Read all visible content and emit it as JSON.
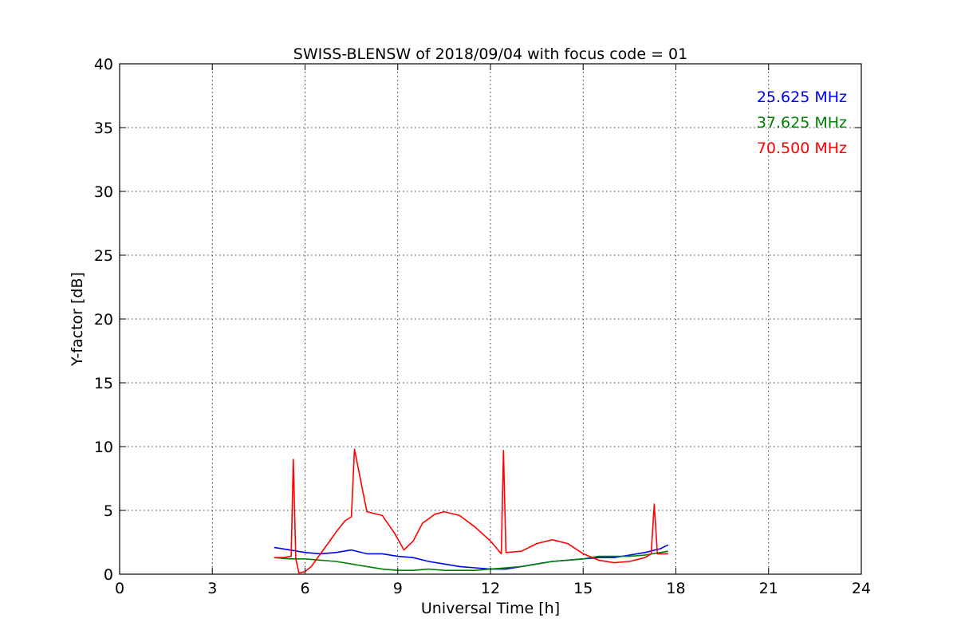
{
  "chart_data": {
    "type": "line",
    "title": "SWISS-BLENSW of 2018/09/04 with focus code = 01",
    "xlabel": "Universal Time [h]",
    "ylabel": "Y-factor [dB]",
    "xlim": [
      0,
      24
    ],
    "ylim": [
      0,
      40
    ],
    "xticks": [
      "0",
      "3",
      "6",
      "9",
      "12",
      "15",
      "18",
      "21",
      "24"
    ],
    "yticks": [
      "0",
      "5",
      "10",
      "15",
      "20",
      "25",
      "30",
      "35",
      "40"
    ],
    "grid": true,
    "legend_position": "top-right",
    "series": [
      {
        "name": "25.625 MHz",
        "color": "#0000ff",
        "x": [
          5.0,
          5.5,
          6.0,
          6.5,
          7.0,
          7.5,
          8.0,
          8.5,
          9.0,
          9.5,
          10.0,
          10.5,
          11.0,
          11.5,
          12.0,
          12.5,
          13.0,
          13.5,
          14.0,
          14.5,
          15.0,
          15.5,
          16.0,
          16.5,
          17.0,
          17.5,
          17.75
        ],
        "y": [
          2.1,
          1.9,
          1.7,
          1.6,
          1.7,
          1.9,
          1.6,
          1.6,
          1.4,
          1.3,
          1.0,
          0.8,
          0.6,
          0.5,
          0.4,
          0.4,
          0.6,
          0.8,
          1.0,
          1.1,
          1.2,
          1.3,
          1.3,
          1.5,
          1.7,
          2.0,
          2.3
        ]
      },
      {
        "name": "37.625 MHz",
        "color": "#008000",
        "x": [
          5.0,
          5.5,
          6.0,
          6.5,
          7.0,
          7.5,
          8.0,
          8.5,
          9.0,
          9.5,
          10.0,
          10.5,
          11.0,
          11.5,
          12.0,
          12.5,
          13.0,
          13.5,
          14.0,
          14.5,
          15.0,
          15.5,
          16.0,
          16.5,
          17.0,
          17.5,
          17.75
        ],
        "y": [
          1.3,
          1.2,
          1.2,
          1.1,
          1.0,
          0.8,
          0.6,
          0.4,
          0.3,
          0.3,
          0.4,
          0.3,
          0.3,
          0.3,
          0.4,
          0.5,
          0.6,
          0.8,
          1.0,
          1.1,
          1.2,
          1.4,
          1.4,
          1.4,
          1.5,
          1.7,
          1.8
        ]
      },
      {
        "name": "70.500 MHz",
        "color": "#ff0000",
        "x": [
          5.0,
          5.3,
          5.55,
          5.62,
          5.7,
          5.8,
          6.0,
          6.2,
          6.5,
          6.8,
          7.0,
          7.3,
          7.5,
          7.6,
          8.0,
          8.5,
          8.9,
          9.2,
          9.5,
          9.8,
          10.2,
          10.5,
          11.0,
          11.5,
          12.0,
          12.35,
          12.42,
          12.5,
          13.0,
          13.5,
          14.0,
          14.5,
          15.0,
          15.5,
          16.0,
          16.5,
          17.0,
          17.2,
          17.3,
          17.4,
          17.75
        ],
        "y": [
          1.3,
          1.3,
          1.4,
          9.0,
          1.2,
          0.1,
          0.2,
          0.6,
          1.6,
          2.6,
          3.3,
          4.2,
          4.5,
          9.8,
          4.9,
          4.6,
          3.2,
          1.9,
          2.6,
          4.0,
          4.7,
          4.9,
          4.6,
          3.7,
          2.6,
          1.6,
          9.7,
          1.7,
          1.8,
          2.4,
          2.7,
          2.4,
          1.6,
          1.1,
          0.9,
          1.0,
          1.3,
          1.6,
          5.5,
          1.6,
          1.6
        ]
      }
    ]
  }
}
